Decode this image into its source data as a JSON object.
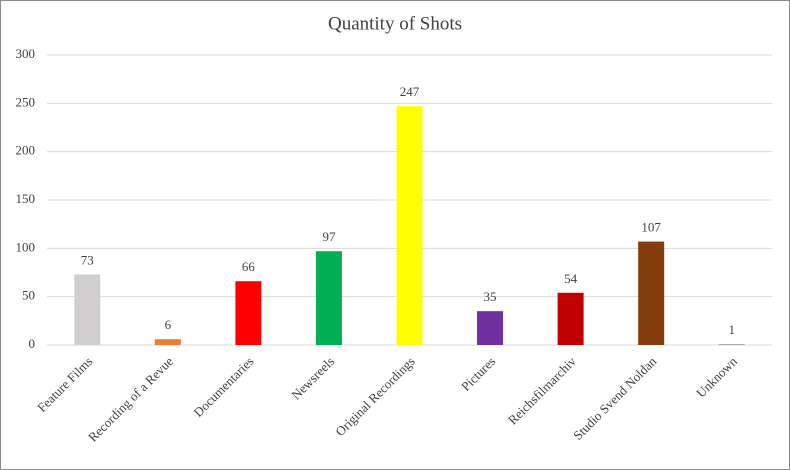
{
  "chart_data": {
    "type": "bar",
    "title": "Quantity of Shots",
    "categories": [
      "Feature Films",
      "Recording of a Revue",
      "Documentaries",
      "Newsreels",
      "Original Recordings",
      "Pictures",
      "Reichsfilmarchiv",
      "Studio Svend Noldan",
      "Unknown"
    ],
    "values": [
      73,
      6,
      66,
      97,
      247,
      35,
      54,
      107,
      1
    ],
    "colors": [
      "#d0cece",
      "#ed7d31",
      "#ff0000",
      "#00b050",
      "#ffff00",
      "#7030a0",
      "#c00000",
      "#843c0c",
      "#a5a5a5"
    ],
    "ylim": [
      0,
      300
    ],
    "yticks": [
      0,
      50,
      100,
      150,
      200,
      250,
      300
    ],
    "grid": true
  }
}
